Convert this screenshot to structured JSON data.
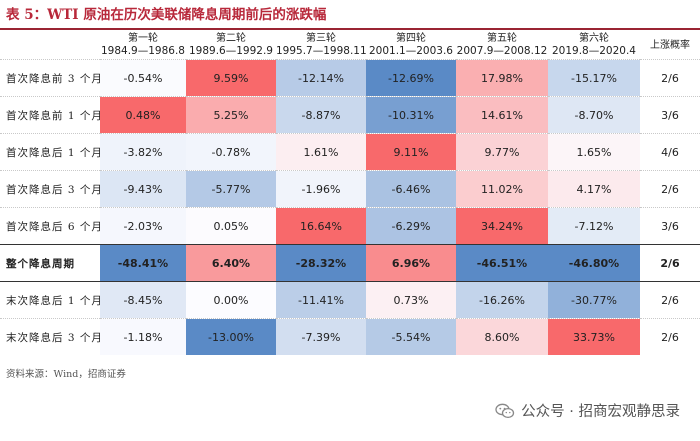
{
  "title": "表 5：WTI 原油在历次美联储降息周期前后的涨跌幅",
  "columns": [
    {
      "name": "第一轮",
      "range": "1984.9—1986.8"
    },
    {
      "name": "第二轮",
      "range": "1989.6—1992.9"
    },
    {
      "name": "第三轮",
      "range": "1995.7—1998.11"
    },
    {
      "name": "第四轮",
      "range": "2001.1—2003.6"
    },
    {
      "name": "第五轮",
      "range": "2007.9—2008.12"
    },
    {
      "name": "第六轮",
      "range": "2019.8—2020.4"
    }
  ],
  "prob_header": "上涨概率",
  "rows": [
    {
      "label": "首次降息前 3 个月",
      "values": [
        "-0.54%",
        "9.59%",
        "-12.14%",
        "-12.69%",
        "17.98%",
        "-15.17%"
      ],
      "prob": "2/6",
      "bold": false
    },
    {
      "label": "首次降息前 1 个月",
      "values": [
        "0.48%",
        "5.25%",
        "-8.87%",
        "-10.31%",
        "14.61%",
        "-8.70%"
      ],
      "prob": "3/6",
      "bold": false
    },
    {
      "label": "首次降息后 1 个月",
      "values": [
        "-3.82%",
        "-0.78%",
        "1.61%",
        "9.11%",
        "9.77%",
        "1.65%"
      ],
      "prob": "4/6",
      "bold": false
    },
    {
      "label": "首次降息后 3 个月",
      "values": [
        "-9.43%",
        "-5.77%",
        "-1.96%",
        "-6.46%",
        "11.02%",
        "4.17%"
      ],
      "prob": "2/6",
      "bold": false
    },
    {
      "label": "首次降息后 6 个月",
      "values": [
        "-2.03%",
        "0.05%",
        "16.64%",
        "-6.29%",
        "34.24%",
        "-7.12%"
      ],
      "prob": "3/6",
      "bold": false
    },
    {
      "label": "整个降息周期",
      "values": [
        "-48.41%",
        "6.40%",
        "-28.32%",
        "6.96%",
        "-46.51%",
        "-46.80%"
      ],
      "prob": "2/6",
      "bold": true
    },
    {
      "label": "末次降息后 1 个月",
      "values": [
        "-8.45%",
        "0.00%",
        "-11.41%",
        "0.73%",
        "-16.26%",
        "-30.77%"
      ],
      "prob": "2/6",
      "bold": false
    },
    {
      "label": "末次降息后 3 个月",
      "values": [
        "-1.18%",
        "-13.00%",
        "-7.39%",
        "-5.54%",
        "8.60%",
        "33.73%"
      ],
      "prob": "2/6",
      "bold": false
    }
  ],
  "footnote": "资料来源：Wind，招商证券",
  "watermark": "公众号 · 招商宏观静思录",
  "colors": {
    "positive": "#f8696b",
    "negative": "#5a8ac6",
    "neutral": "#fcfcff",
    "title": "#b8283a"
  }
}
